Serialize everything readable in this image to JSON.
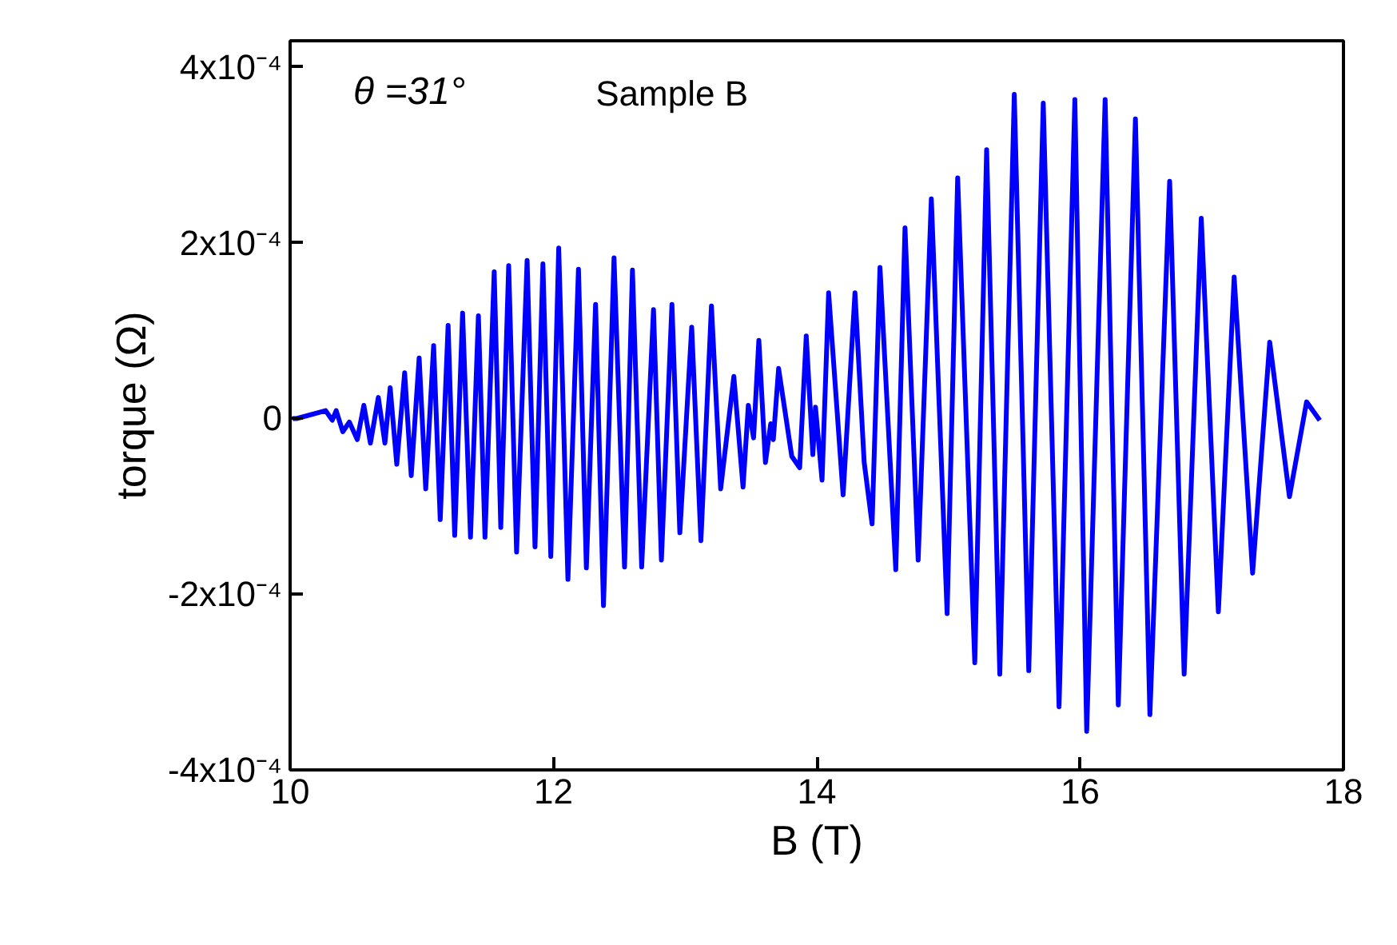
{
  "chart_data": {
    "type": "line",
    "xlabel": "B (T)",
    "ylabel": "torque (Ω)",
    "annotations": [
      "θ =31°",
      "Sample B"
    ],
    "xlim": [
      10,
      18
    ],
    "ylim": [
      -0.0004,
      0.00043
    ],
    "xticks": [
      10,
      12,
      14,
      16,
      18
    ],
    "yticks": [
      {
        "value": -0.0004,
        "label": "-4x10⁻⁴"
      },
      {
        "value": -0.0002,
        "label": "-2x10⁻⁴"
      },
      0,
      {
        "value": 0.0002,
        "label": "2x10⁻⁴"
      },
      {
        "value": 0.0004,
        "label": "4x10⁻⁴"
      }
    ],
    "grid": false,
    "marker": "none",
    "line_style": "solid",
    "x": [
      10.02,
      10.05,
      10.27,
      10.32,
      10.35,
      10.4,
      10.45,
      10.51,
      10.56,
      10.61,
      10.67,
      10.72,
      10.76,
      10.81,
      10.87,
      10.92,
      10.98,
      11.03,
      11.09,
      11.14,
      11.2,
      11.25,
      11.31,
      11.37,
      11.43,
      11.48,
      11.55,
      11.6,
      11.66,
      11.72,
      11.8,
      11.86,
      11.92,
      11.98,
      12.04,
      12.11,
      12.19,
      12.25,
      12.32,
      12.38,
      12.46,
      12.54,
      12.6,
      12.67,
      12.76,
      12.82,
      12.9,
      12.96,
      13.05,
      13.12,
      13.2,
      13.27,
      13.37,
      13.44,
      13.48,
      13.52,
      13.56,
      13.61,
      13.65,
      13.67,
      13.71,
      13.81,
      13.87,
      13.92,
      13.97,
      13.99,
      14.04,
      14.09,
      14.2,
      14.29,
      14.36,
      14.42,
      14.48,
      14.6,
      14.67,
      14.77,
      14.87,
      14.99,
      15.07,
      15.2,
      15.29,
      15.39,
      15.5,
      15.61,
      15.72,
      15.84,
      15.96,
      16.05,
      16.19,
      16.29,
      16.42,
      16.53,
      16.68,
      16.79,
      16.92,
      17.05,
      17.17,
      17.31,
      17.44,
      17.59,
      17.72,
      17.82
    ],
    "series": [
      {
        "color": "#0000ff",
        "values": [
          0,
          0,
          9e-06,
          -2e-06,
          9e-06,
          -1.5e-05,
          -4e-06,
          -2.4e-05,
          1.5e-05,
          -2.8e-05,
          2.4e-05,
          -2.8e-05,
          3.5e-05,
          -5.2e-05,
          5.2e-05,
          -6.5e-05,
          6.9e-05,
          -8e-05,
          8.3e-05,
          -0.000115,
          0.000106,
          -0.000133,
          0.00012,
          -0.000135,
          0.000117,
          -0.000135,
          0.000167,
          -0.000124,
          0.000174,
          -0.000152,
          0.00018,
          -0.000146,
          0.000176,
          -0.000157,
          0.000194,
          -0.000183,
          0.00017,
          -0.00017,
          0.00013,
          -0.000213,
          0.000183,
          -0.000169,
          0.000169,
          -0.000169,
          0.000124,
          -0.000161,
          0.00013,
          -0.00013,
          0.000104,
          -0.000139,
          0.000128,
          -8e-05,
          4.8e-05,
          -7.8e-05,
          1.5e-05,
          -2.2e-05,
          8.9e-05,
          -5e-05,
          -6e-06,
          -2.4e-05,
          5.7e-05,
          -4.3e-05,
          -5.6e-05,
          9.4e-05,
          -4.1e-05,
          1.3e-05,
          -7e-05,
          0.000143,
          -8.7e-05,
          0.000143,
          -5e-05,
          -0.00012,
          0.000172,
          -0.000172,
          0.000217,
          -0.000161,
          0.00025,
          -0.000222,
          0.000274,
          -0.000278,
          0.000306,
          -0.000291,
          0.000369,
          -0.000287,
          0.000359,
          -0.000328,
          0.000363,
          -0.000356,
          0.000363,
          -0.000326,
          0.000341,
          -0.000337,
          0.00027,
          -0.000291,
          0.000228,
          -0.00022,
          0.000161,
          -0.000176,
          8.7e-05,
          -8.9e-05,
          1.9e-05,
          -2e-06
        ]
      }
    ]
  }
}
